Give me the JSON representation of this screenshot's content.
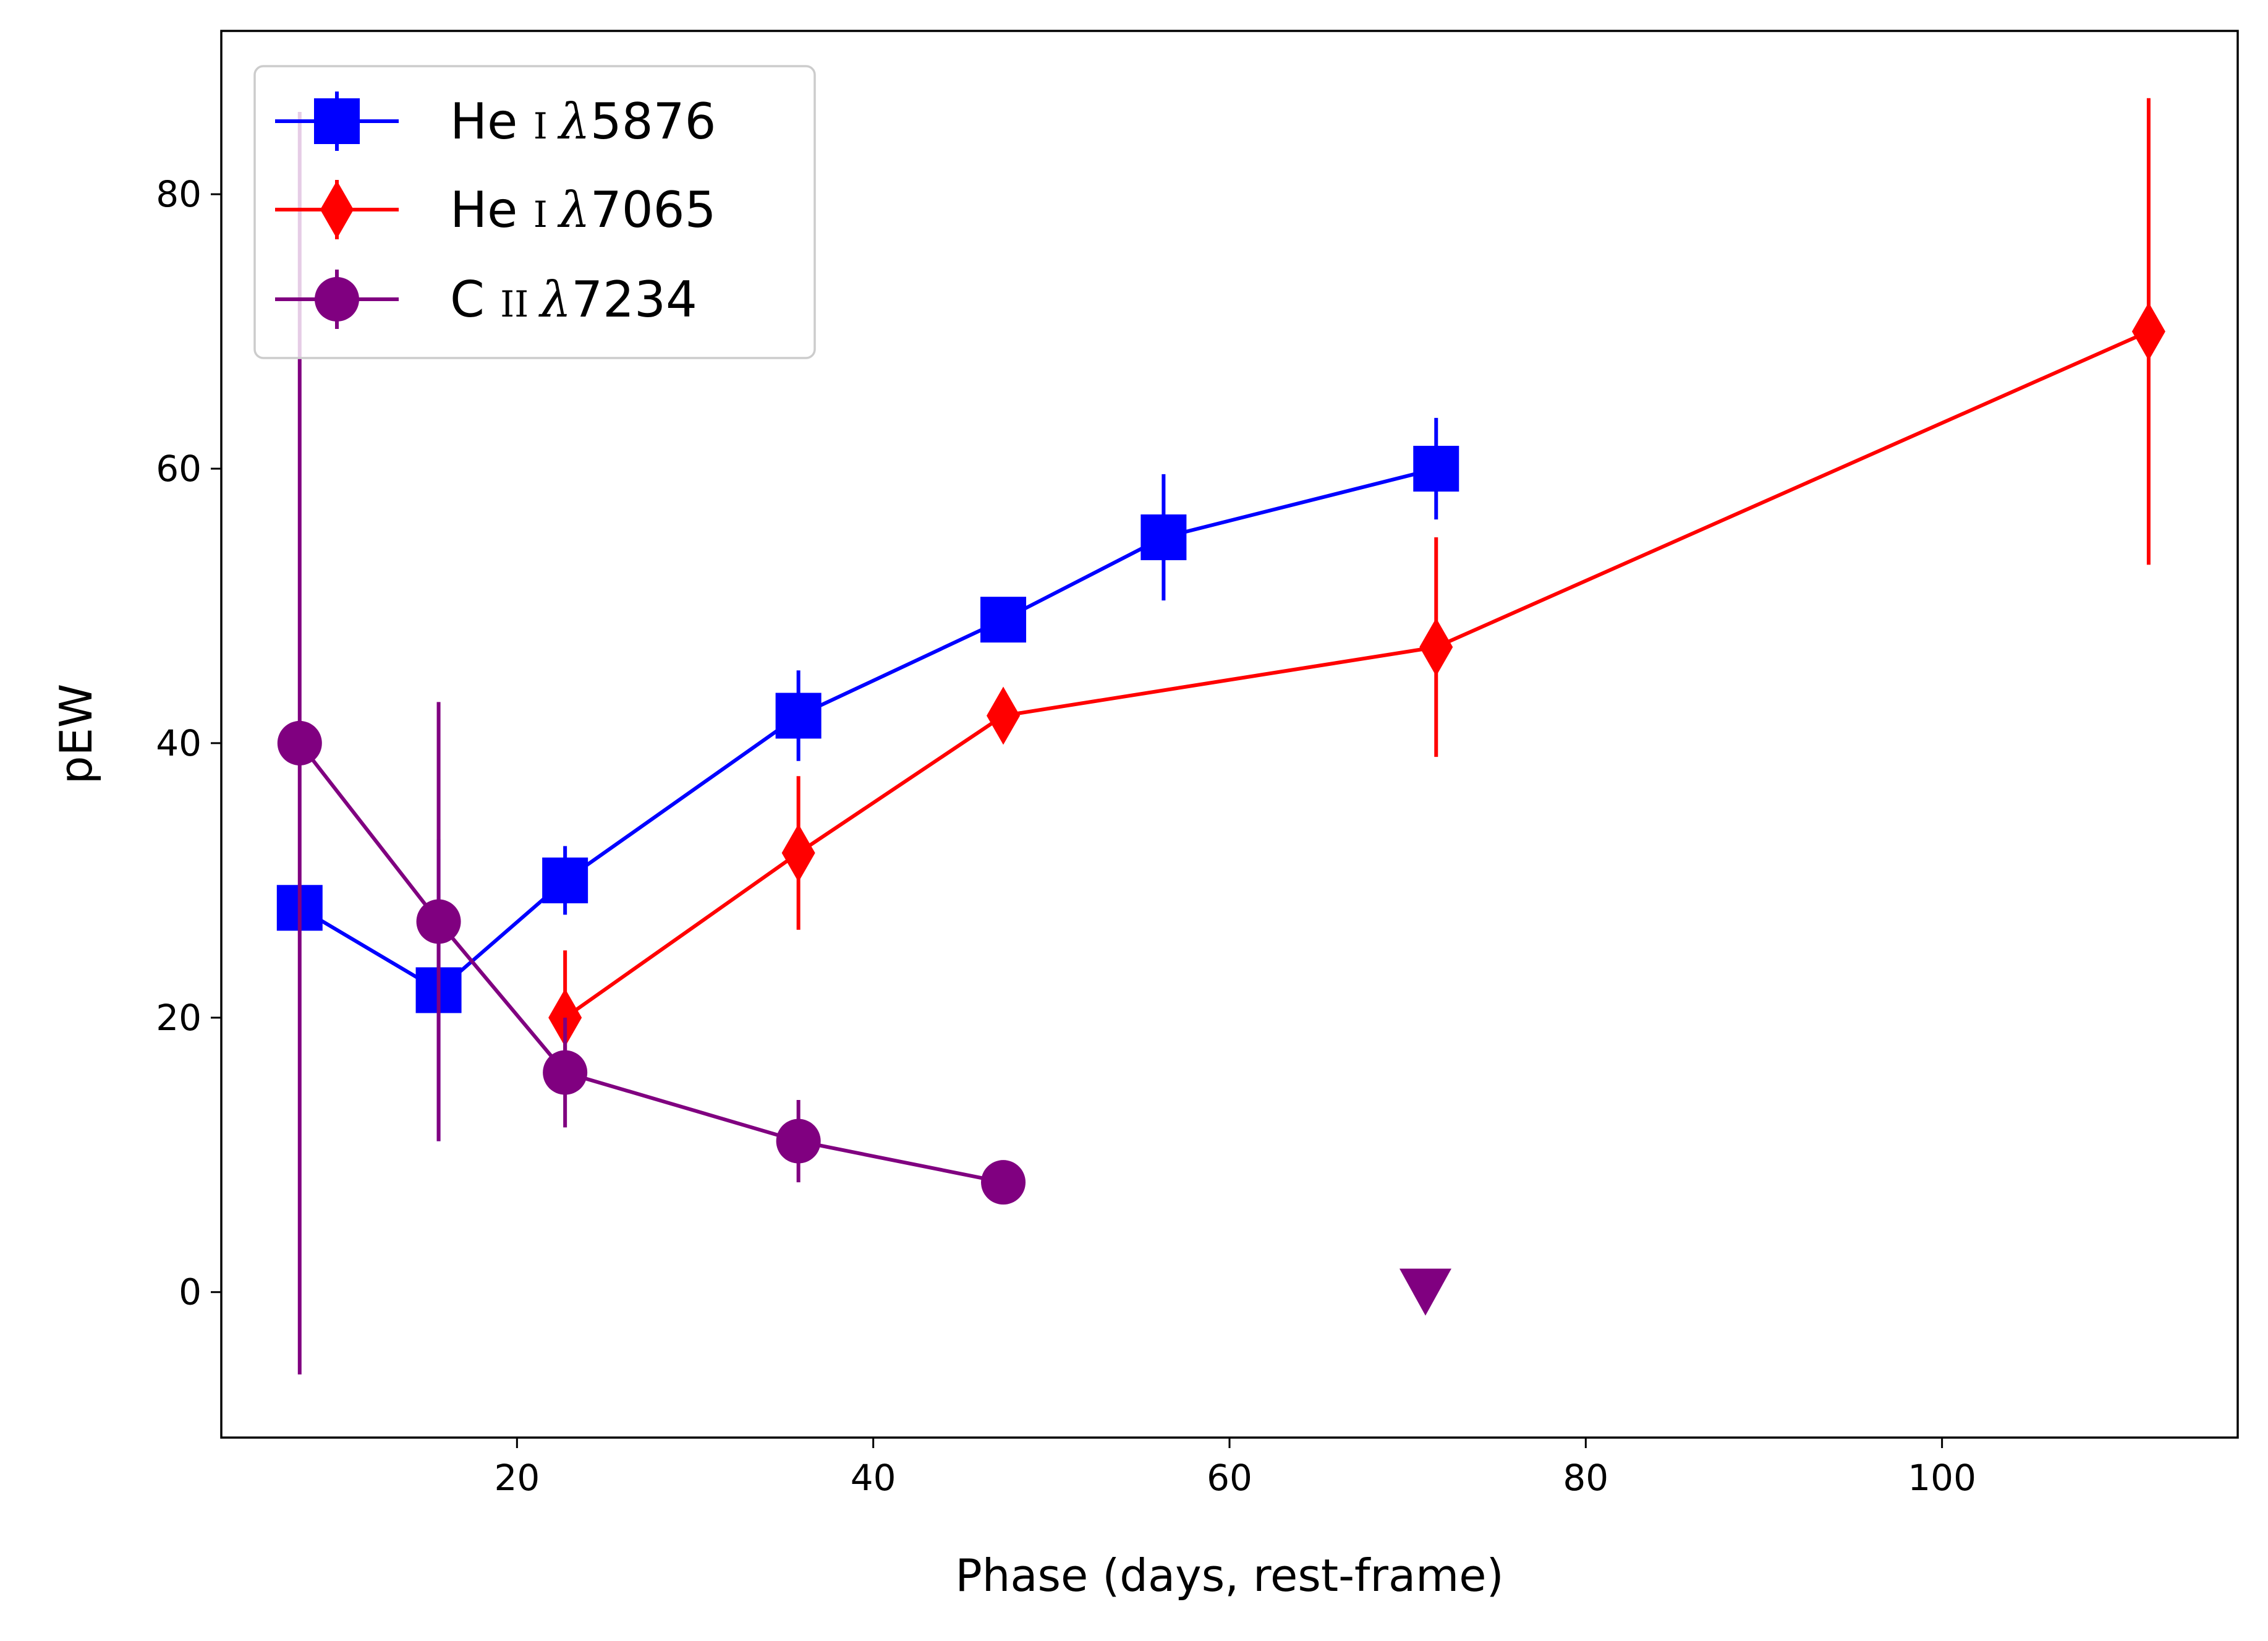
{
  "chart_data": {
    "type": "line",
    "title": "",
    "xlabel": "Phase (days, rest-frame)",
    "ylabel": "pEW",
    "xlim": [
      3.4,
      116.6
    ],
    "ylim": [
      -10.6,
      91.9
    ],
    "xticks": [
      20,
      40,
      60,
      80,
      100
    ],
    "yticks": [
      0,
      20,
      40,
      60,
      80
    ],
    "grid": false,
    "legend_position": "upper-left",
    "series": [
      {
        "name": "He I λ5876",
        "legend": {
          "ion": "He",
          "stage": "I",
          "lambda": "λ",
          "wave": "5876"
        },
        "color": "#0000ff",
        "marker": "square",
        "x": [
          7.8,
          15.6,
          22.7,
          35.8,
          47.3,
          56.3,
          71.6
        ],
        "y": [
          28,
          22,
          30,
          42,
          49,
          55,
          60
        ],
        "yerr": [
          0,
          11,
          2.5,
          3.3,
          1.2,
          4.6,
          3.7
        ]
      },
      {
        "name": "He I λ7065",
        "legend": {
          "ion": "He",
          "stage": "I",
          "lambda": "λ",
          "wave": "7065"
        },
        "color": "#ff0000",
        "marker": "diamond",
        "x": [
          22.7,
          35.8,
          47.3,
          71.6,
          111.6
        ],
        "y": [
          20,
          32,
          42,
          47,
          70
        ],
        "yerr": [
          4.9,
          5.6,
          1.0,
          8.0,
          17.0
        ]
      },
      {
        "name": "C II λ7234",
        "legend": {
          "ion": "C",
          "stage": "II",
          "lambda": "λ",
          "wave": "7234"
        },
        "color": "#800080",
        "marker": "circle",
        "x": [
          7.8,
          15.6,
          22.7,
          35.8,
          47.3
        ],
        "y": [
          40,
          27,
          16,
          11,
          8
        ],
        "yerr": [
          46,
          16,
          4,
          3,
          0
        ]
      }
    ],
    "upper_limits": [
      {
        "series": "C II λ7234",
        "x": 71.0,
        "y": 0,
        "marker": "triangle-down",
        "color": "#800080"
      }
    ]
  }
}
